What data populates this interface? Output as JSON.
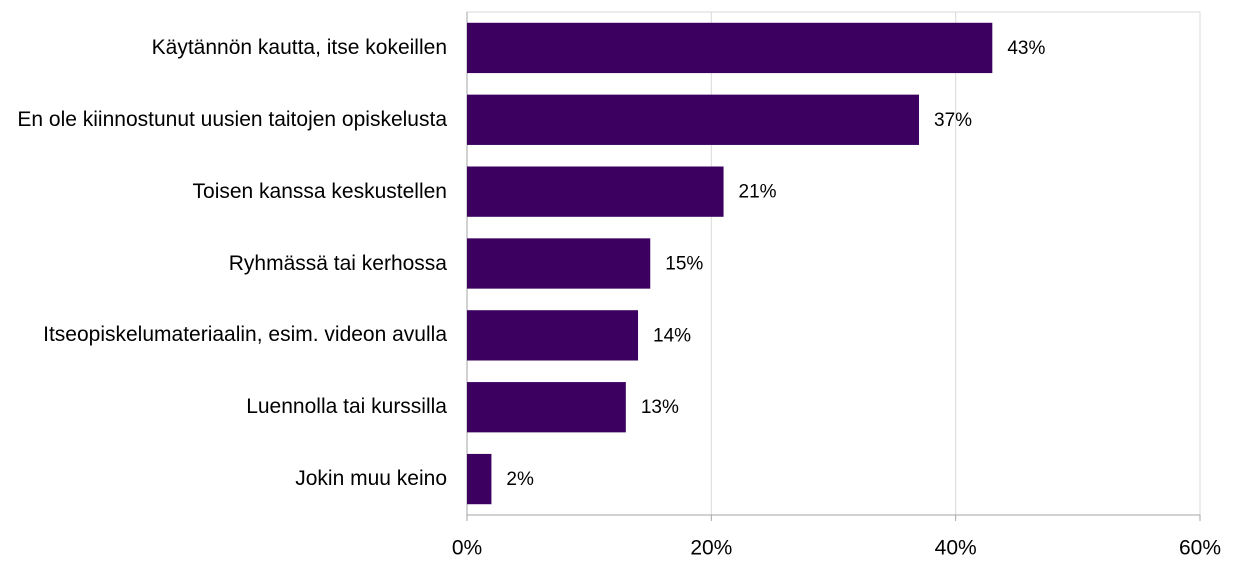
{
  "chart_data": {
    "type": "bar",
    "orientation": "horizontal",
    "categories": [
      "Käytännön kautta, itse kokeillen",
      "En ole kiinnostunut uusien taitojen opiskelusta",
      "Toisen kanssa keskustellen",
      "Ryhmässä tai kerhossa",
      "Itseopiskelumateriaalin, esim. videon avulla",
      "Luennolla tai kurssilla",
      "Jokin muu keino"
    ],
    "values": [
      43,
      37,
      21,
      15,
      14,
      13,
      2
    ],
    "value_labels": [
      "43%",
      "37%",
      "21%",
      "15%",
      "14%",
      "13%",
      "2%"
    ],
    "color": "#3b0060",
    "xlim": [
      0,
      60
    ],
    "xticks": [
      {
        "value": 0,
        "label": "0%"
      },
      {
        "value": 20,
        "label": "20%"
      },
      {
        "value": 40,
        "label": "40%"
      },
      {
        "value": 60,
        "label": "60%"
      }
    ],
    "grid": true
  }
}
